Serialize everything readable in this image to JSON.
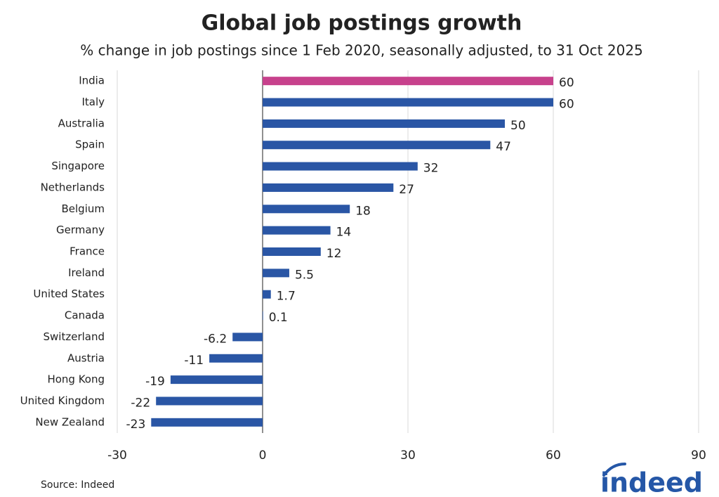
{
  "chart_data": {
    "type": "hbar",
    "title": "Global job postings growth",
    "subtitle": "% change in job postings since 1 Feb 2020, seasonally adjusted, to 31 Oct 2025",
    "categories": [
      "India",
      "Italy",
      "Australia",
      "Spain",
      "Singapore",
      "Netherlands",
      "Belgium",
      "Germany",
      "France",
      "Ireland",
      "United States",
      "Canada",
      "Switzerland",
      "Austria",
      "Hong Kong",
      "United Kingdom",
      "New Zealand"
    ],
    "values": [
      60,
      60,
      50,
      47,
      32,
      27,
      18,
      14,
      12,
      5.5,
      1.7,
      0.1,
      -6.2,
      -11,
      -19,
      -22,
      -23
    ],
    "colors": [
      "#c7418c",
      "#2a56a5",
      "#2a56a5",
      "#2a56a5",
      "#2a56a5",
      "#2a56a5",
      "#2a56a5",
      "#2a56a5",
      "#2a56a5",
      "#2a56a5",
      "#2a56a5",
      "#2a56a5",
      "#2a56a5",
      "#2a56a5",
      "#2a56a5",
      "#2a56a5",
      "#2a56a5"
    ],
    "xlim": [
      -30,
      90
    ],
    "xticks": [
      -30,
      0,
      30,
      60,
      90
    ],
    "grid": true,
    "source": "Source: Indeed",
    "logo": "indeed"
  }
}
